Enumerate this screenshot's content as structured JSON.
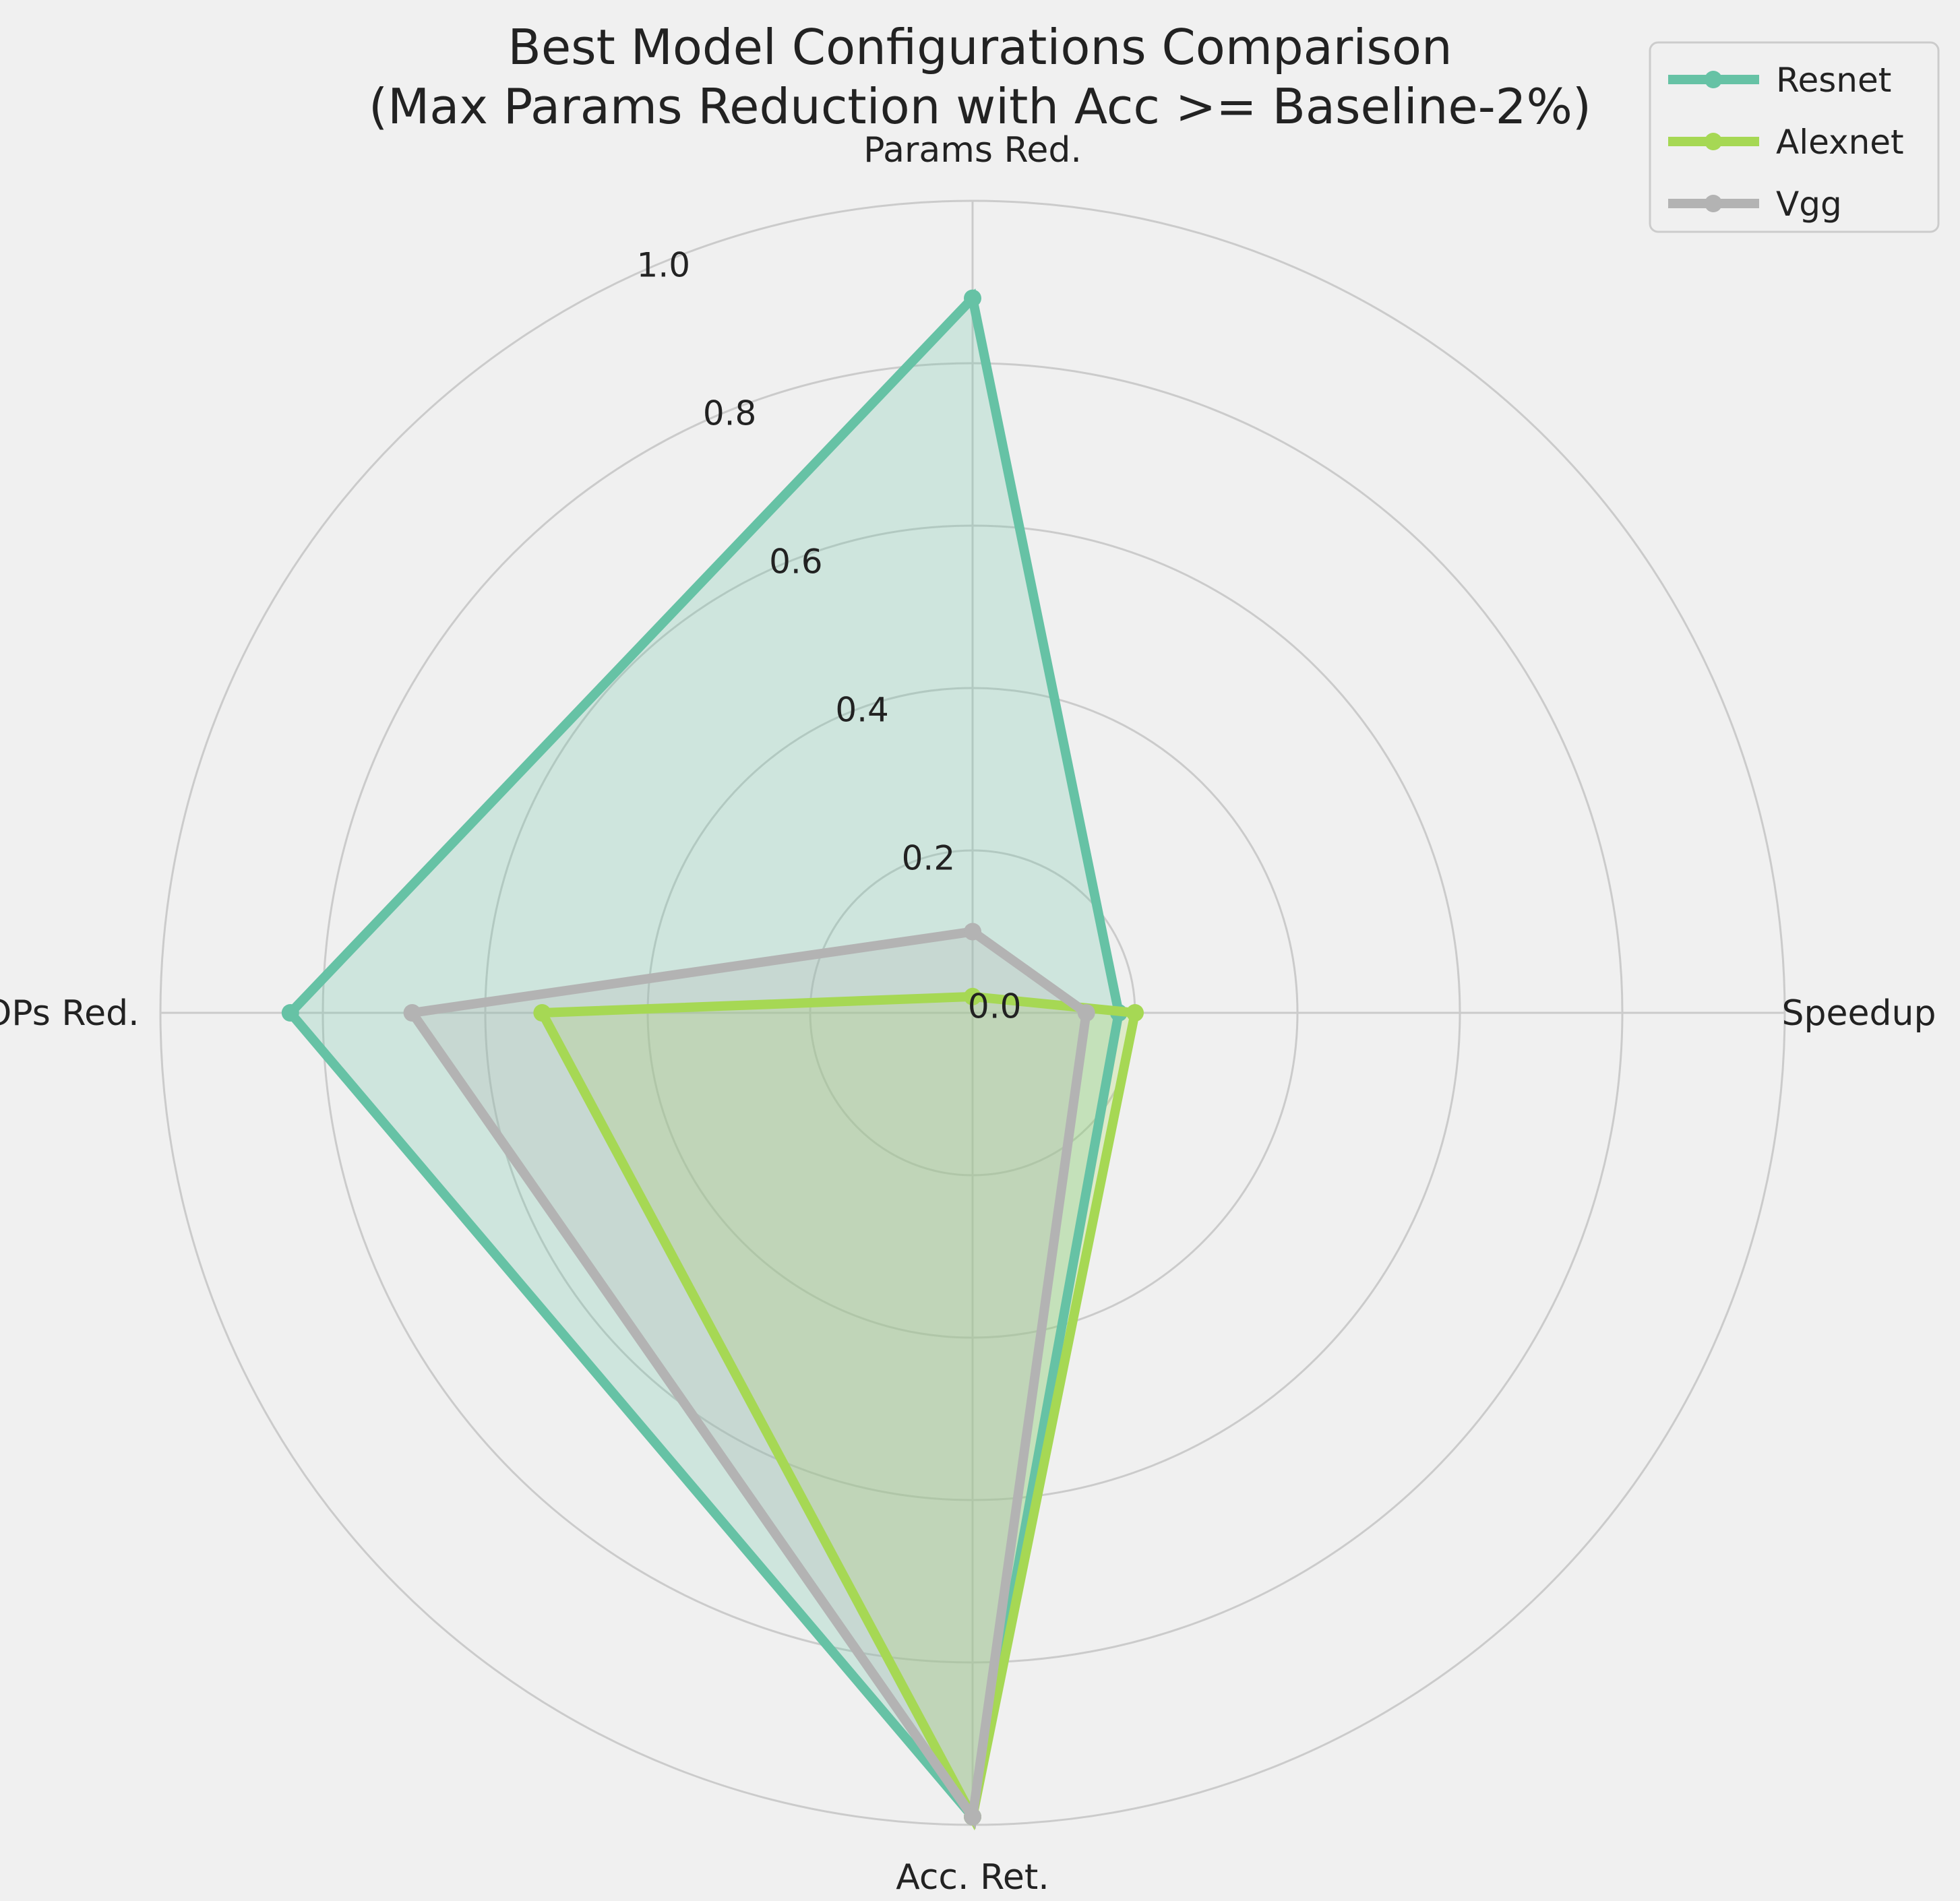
{
  "chart_data": {
    "type": "radar",
    "title_line1": "Best Model Configurations Comparison",
    "title_line2": "(Max Params Reduction with Acc >= Baseline-2%)",
    "axes": [
      "Params Red.",
      "Speedup",
      "Acc. Ret.",
      "FLOPs Red."
    ],
    "radial_ticks": [
      "0.0",
      "0.2",
      "0.4",
      "0.6",
      "0.8",
      "1.0"
    ],
    "radial_tick_values": [
      0.0,
      0.2,
      0.4,
      0.6,
      0.8,
      1.0
    ],
    "rlim": [
      0.0,
      1.0
    ],
    "grid": true,
    "legend_position": "top-right",
    "series": [
      {
        "name": "Resnet",
        "color": "#66c2a5",
        "values": [
          0.88,
          0.18,
          0.99,
          0.84
        ]
      },
      {
        "name": "Alexnet",
        "color": "#a6d854",
        "values": [
          0.02,
          0.2,
          0.99,
          0.53
        ]
      },
      {
        "name": "Vgg",
        "color": "#b3b3b3",
        "values": [
          0.1,
          0.14,
          0.99,
          0.69
        ]
      }
    ]
  }
}
